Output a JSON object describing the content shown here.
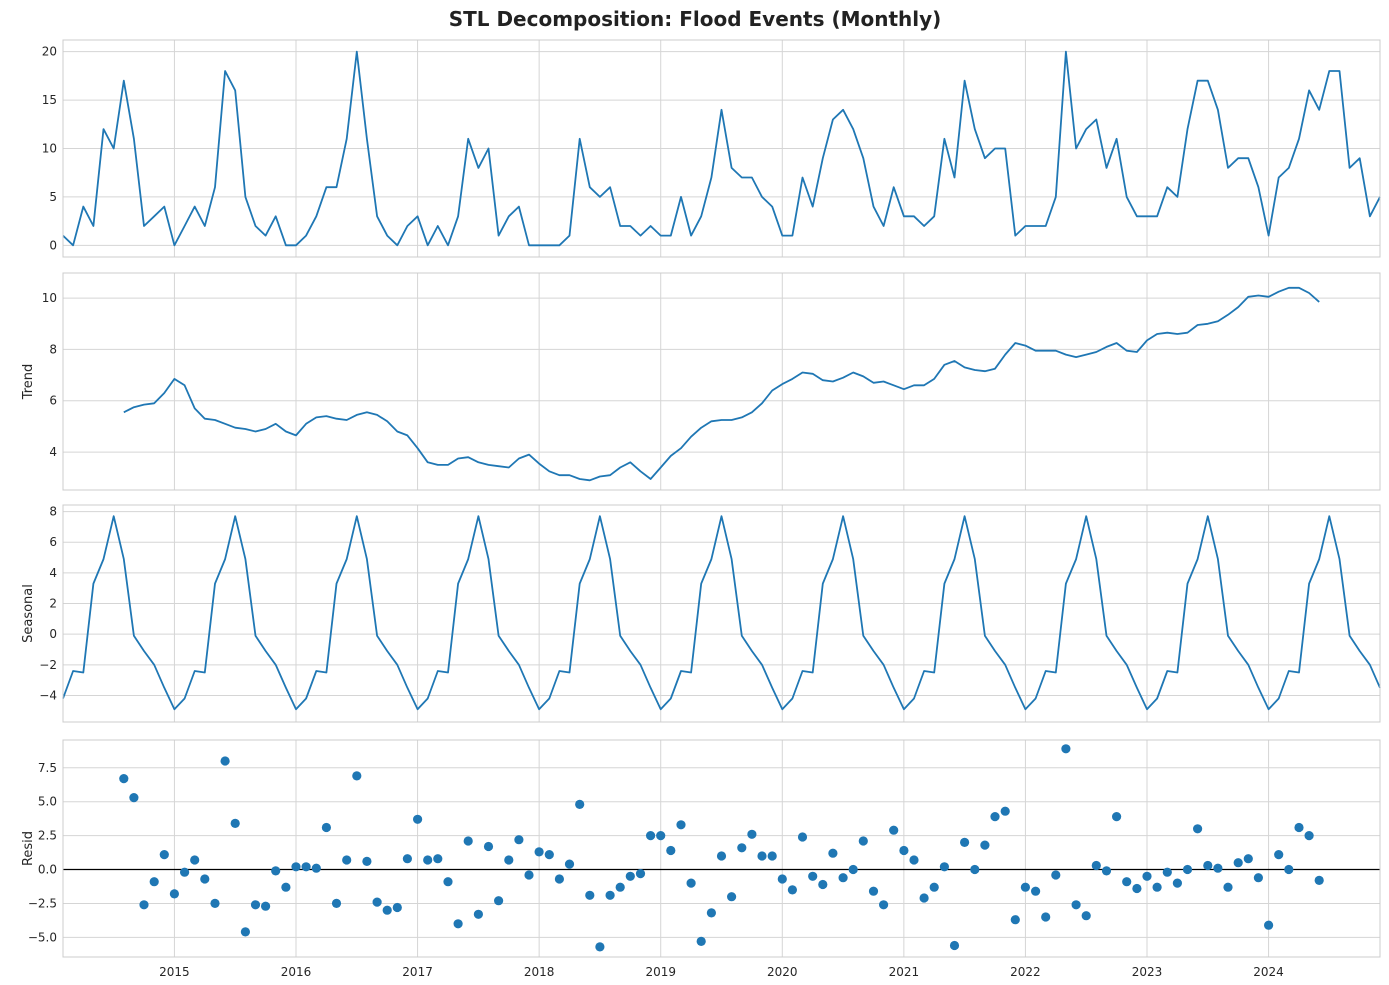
{
  "figure": {
    "title": "STL Decomposition: Flood Events (Monthly)"
  },
  "colors": {
    "line": "#1f77b4",
    "grid": "#d5d5d5",
    "frame": "#cccccc",
    "zero_line": "#000000",
    "text": "#262626"
  },
  "chart_data": {
    "type": "line",
    "title": "STL Decomposition: Flood Events (Monthly)",
    "x_start": "2014-02",
    "x_end": "2024-12",
    "xlim": [
      "2014-02",
      "2024-12"
    ],
    "x_ticks": [
      "2015",
      "2016",
      "2017",
      "2018",
      "2019",
      "2020",
      "2021",
      "2022",
      "2023",
      "2024"
    ],
    "grid": true,
    "panels": [
      {
        "key": "observed",
        "ylabel": "",
        "kind": "line",
        "ylim": [
          -1,
          21
        ],
        "yticks": [
          0,
          5,
          10,
          15,
          20
        ],
        "ytick_labels": [
          "0",
          "5",
          "10",
          "15",
          "20"
        ],
        "values": [
          1,
          0,
          4,
          2,
          12,
          10,
          17,
          11,
          2,
          3,
          4,
          0,
          2,
          4,
          2,
          6,
          18,
          16,
          5,
          2,
          1,
          3,
          0,
          0,
          1,
          3,
          6,
          6,
          11,
          20,
          11,
          3,
          1,
          0,
          2,
          3,
          0,
          2,
          0,
          3,
          11,
          8,
          10,
          1,
          3,
          4,
          0,
          0,
          0,
          0,
          1,
          11,
          6,
          5,
          6,
          2,
          2,
          1,
          2,
          1,
          1,
          5,
          1,
          3,
          7,
          14,
          8,
          7,
          7,
          5,
          4,
          1,
          1,
          7,
          4,
          9,
          13,
          14,
          12,
          9,
          4,
          2,
          6,
          3,
          3,
          2,
          3,
          11,
          7,
          17,
          12,
          9,
          10,
          10,
          1,
          2,
          2,
          2,
          5,
          20,
          10,
          12,
          13,
          8,
          11,
          5,
          3,
          3,
          3,
          6,
          5,
          12,
          17,
          17,
          14,
          8,
          9,
          9,
          6,
          1,
          7,
          8,
          11,
          16,
          14,
          18,
          18,
          8,
          9,
          3,
          5
        ]
      },
      {
        "key": "trend",
        "ylabel": "Trend",
        "kind": "line",
        "ylim": [
          2.6,
          10.9
        ],
        "yticks": [
          4,
          6,
          8,
          10
        ],
        "ytick_labels": [
          "4",
          "6",
          "8",
          "10"
        ],
        "start": "2014-08",
        "values": [
          5.55,
          5.75,
          5.85,
          5.9,
          6.3,
          6.85,
          6.6,
          5.7,
          5.3,
          5.25,
          5.1,
          4.95,
          4.9,
          4.8,
          4.9,
          5.1,
          4.8,
          4.65,
          5.1,
          5.35,
          5.4,
          5.3,
          5.25,
          5.45,
          5.55,
          5.45,
          5.2,
          4.8,
          4.65,
          4.15,
          3.6,
          3.5,
          3.5,
          3.75,
          3.8,
          3.6,
          3.5,
          3.45,
          3.4,
          3.75,
          3.9,
          3.55,
          3.25,
          3.1,
          3.1,
          2.95,
          2.9,
          3.05,
          3.1,
          3.4,
          3.6,
          3.25,
          2.95,
          3.4,
          3.85,
          4.15,
          4.6,
          4.95,
          5.2,
          5.25,
          5.25,
          5.35,
          5.55,
          5.9,
          6.4,
          6.65,
          6.85,
          7.1,
          7.05,
          6.8,
          6.75,
          6.9,
          7.1,
          6.95,
          6.7,
          6.75,
          6.6,
          6.45,
          6.6,
          6.6,
          6.85,
          7.4,
          7.55,
          7.3,
          7.2,
          7.15,
          7.25,
          7.8,
          8.25,
          8.15,
          7.95,
          7.95,
          7.95,
          7.8,
          7.7,
          7.8,
          7.9,
          8.1,
          8.25,
          7.95,
          7.9,
          8.35,
          8.6,
          8.65,
          8.6,
          8.65,
          8.95,
          9.0,
          9.1,
          9.35,
          9.65,
          10.05,
          10.1,
          10.05,
          10.25,
          10.4,
          10.4,
          10.2,
          9.85
        ]
      },
      {
        "key": "seasonal",
        "ylabel": "Seasonal",
        "kind": "line",
        "ylim": [
          -5.6,
          8.3
        ],
        "yticks": [
          -4,
          -2,
          0,
          2,
          4,
          6,
          8
        ],
        "ytick_labels": [
          "−4",
          "−2",
          "0",
          "2",
          "4",
          "6",
          "8"
        ],
        "values": [
          -4.2,
          -2.4,
          -2.5,
          3.3,
          4.9,
          7.7,
          4.9,
          -0.1,
          -1.1,
          -2.0,
          -3.5,
          -4.9
        ]
      },
      {
        "key": "resid",
        "ylabel": "Resid",
        "kind": "scatter",
        "ylim": [
          -6.3,
          9.4
        ],
        "yticks": [
          -5.0,
          -2.5,
          0.0,
          2.5,
          5.0,
          7.5
        ],
        "ytick_labels": [
          "−5.0",
          "−2.5",
          "0.0",
          "2.5",
          "5.0",
          "7.5"
        ],
        "zero_line": true,
        "start": "2014-08",
        "values": [
          6.7,
          5.3,
          -2.6,
          -0.9,
          1.1,
          -1.8,
          -0.2,
          0.7,
          -0.7,
          -2.5,
          8.0,
          3.4,
          -4.6,
          -2.6,
          -2.7,
          -0.1,
          -1.3,
          0.2,
          0.2,
          0.1,
          3.1,
          -2.5,
          0.7,
          6.9,
          0.6,
          -2.4,
          -3.0,
          -2.8,
          0.8,
          3.7,
          0.7,
          0.8,
          -0.9,
          -4.0,
          2.1,
          -3.3,
          1.7,
          -2.3,
          0.7,
          2.2,
          -0.4,
          1.3,
          1.1,
          -0.7,
          0.4,
          4.8,
          -1.9,
          -5.7,
          -1.9,
          -1.3,
          -0.5,
          -0.3,
          2.5,
          2.5,
          1.4,
          3.3,
          -1.0,
          -5.3,
          -3.2,
          1.0,
          -2.0,
          1.6,
          2.6,
          1.0,
          1.0,
          -0.7,
          -1.5,
          2.4,
          -0.5,
          -1.1,
          1.2,
          -0.6,
          0.0,
          2.1,
          -1.6,
          -2.6,
          2.9,
          1.4,
          0.7,
          -2.1,
          -1.3,
          0.2,
          -5.6,
          2.0,
          0.0,
          1.8,
          3.9,
          4.3,
          -3.7,
          -1.3,
          -1.6,
          -3.5,
          -0.4,
          8.9,
          -2.6,
          -3.4,
          0.3,
          -0.1,
          3.9,
          -0.9,
          -1.4,
          -0.5,
          -1.3,
          -0.2,
          -1.0,
          0.0,
          3.0,
          0.3,
          0.1,
          -1.3,
          0.5,
          0.8,
          -0.6,
          -4.1,
          1.1,
          0.0,
          3.1,
          2.5,
          -0.8
        ]
      }
    ]
  }
}
